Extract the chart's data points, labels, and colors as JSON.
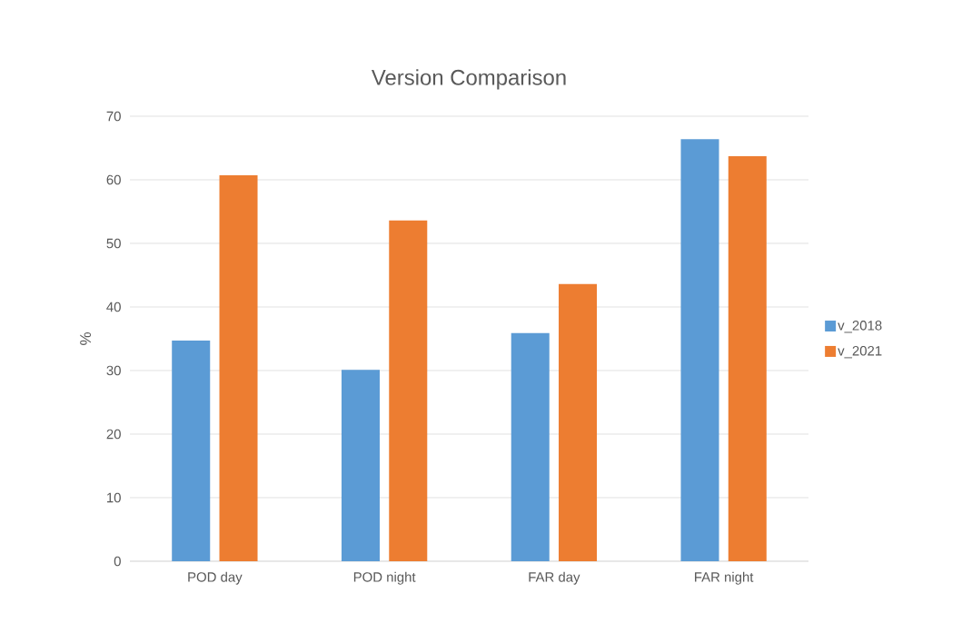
{
  "chart_data": {
    "type": "bar",
    "title": "Version Comparison",
    "ylabel": "%",
    "categories": [
      "POD day",
      "POD night",
      "FAR day",
      "FAR night"
    ],
    "series": [
      {
        "name": "v_2018",
        "color": "#5b9bd5",
        "values": [
          34.7,
          30.1,
          35.9,
          66.4
        ]
      },
      {
        "name": "v_2021",
        "color": "#ed7d31",
        "values": [
          60.7,
          53.6,
          43.6,
          63.7
        ]
      }
    ],
    "ylim": [
      0,
      70
    ],
    "yticks": [
      0,
      10,
      20,
      30,
      40,
      50,
      60,
      70
    ],
    "grid": "y",
    "legend": "right"
  }
}
